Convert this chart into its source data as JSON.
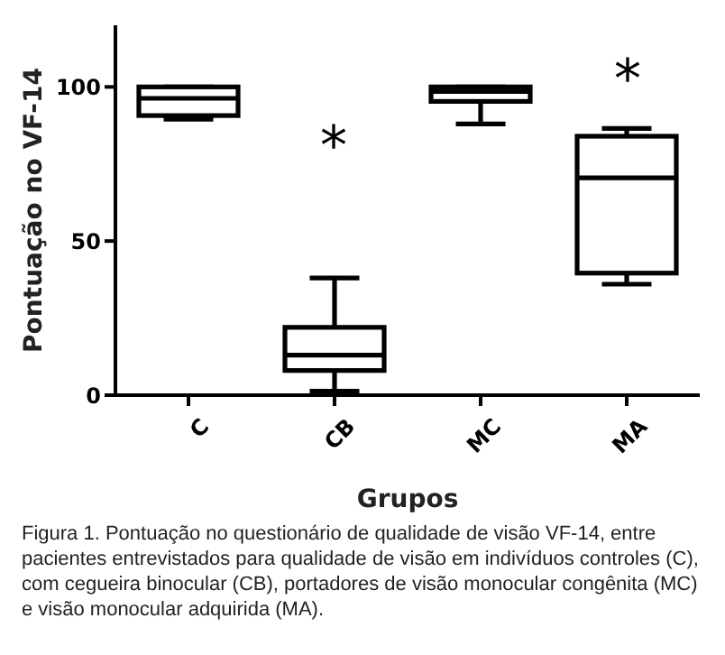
{
  "chart_data": {
    "type": "box",
    "xlabel": "Grupos",
    "ylabel": "Pontuação no VF-14",
    "categories": [
      "C",
      "CB",
      "MC",
      "MA"
    ],
    "boxes": [
      {
        "low": 89.5,
        "q1": 90.7,
        "median": 96.3,
        "q3": 100,
        "high": 100
      },
      {
        "low": 1.3,
        "q1": 8,
        "median": 13,
        "q3": 22,
        "high": 38
      },
      {
        "low": 88,
        "q1": 95.3,
        "median": 98.5,
        "q3": 100,
        "high": 100
      },
      {
        "low": 36,
        "q1": 39.6,
        "median": 70.5,
        "q3": 84,
        "high": 86.5
      }
    ],
    "color": "#000000",
    "ylim": [
      0,
      120
    ],
    "yticks": [
      0,
      50,
      100
    ],
    "grid": false,
    "legend": false,
    "annotations": [
      "*",
      "*",
      "Figura 1. Pontuação no questionário de qualidade de visão VF-14, entre pacientes entrevistados para qualidade de visão em indivíduos controles (C), com cegueira binocular (CB), portadores de visão monocular congênita (MC) e visão monocular adquirida (MA)."
    ]
  }
}
